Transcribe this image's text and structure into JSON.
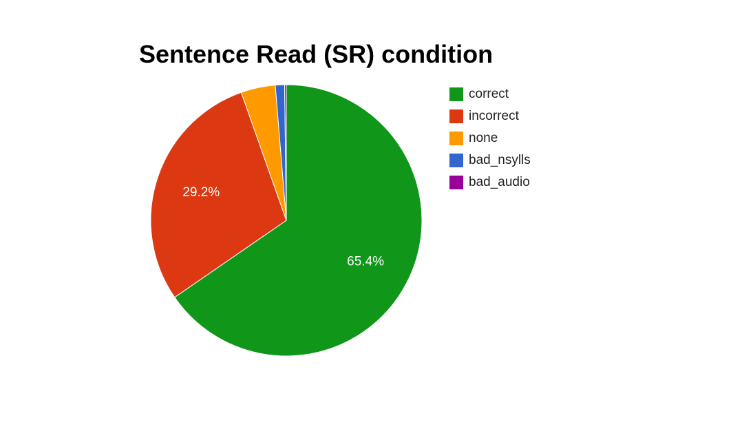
{
  "chart_data": {
    "type": "pie",
    "title": "Sentence Read (SR) condition",
    "slices": [
      {
        "label": "correct",
        "value": 65.4,
        "color": "#109618",
        "display": "65.4%"
      },
      {
        "label": "incorrect",
        "value": 29.2,
        "color": "#dc3912",
        "display": "29.2%"
      },
      {
        "label": "none",
        "value": 4.1,
        "color": "#ff9900",
        "display": ""
      },
      {
        "label": "bad_nsylls",
        "value": 1.1,
        "color": "#3366cc",
        "display": ""
      },
      {
        "label": "bad_audio",
        "value": 0.2,
        "color": "#990099",
        "display": ""
      }
    ],
    "start_angle": "12 o'clock",
    "direction": "clockwise",
    "legend_position": "right"
  }
}
